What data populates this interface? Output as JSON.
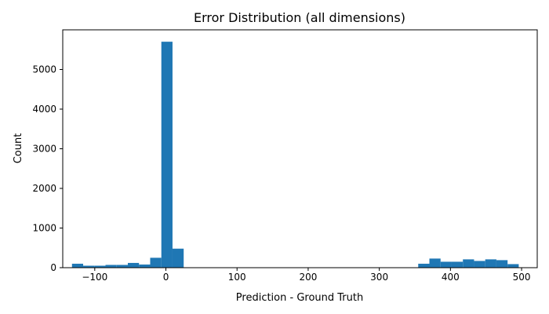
{
  "chart_data": {
    "type": "bar",
    "title": "Error Distribution (all dimensions)",
    "xlabel": "Prediction - Ground Truth",
    "ylabel": "Count",
    "xlim": [
      -145,
      522
    ],
    "ylim": [
      0,
      6000
    ],
    "xticks": [
      -100,
      0,
      100,
      200,
      300,
      400,
      500
    ],
    "yticks": [
      0,
      1000,
      2000,
      3000,
      4000,
      5000
    ],
    "grid": false,
    "bar_color": "#1f77b4",
    "bin_width": 15.7,
    "bins": [
      {
        "x0": -132.0,
        "value": 100
      },
      {
        "x0": -116.3,
        "value": 50
      },
      {
        "x0": -100.6,
        "value": 50
      },
      {
        "x0": -84.9,
        "value": 70
      },
      {
        "x0": -69.2,
        "value": 70
      },
      {
        "x0": -53.5,
        "value": 120
      },
      {
        "x0": -37.8,
        "value": 80
      },
      {
        "x0": -22.1,
        "value": 250
      },
      {
        "x0": -6.4,
        "value": 5700
      },
      {
        "x0": 9.3,
        "value": 480
      },
      {
        "x0": 25.0,
        "value": 0
      },
      {
        "x0": 40.7,
        "value": 0
      },
      {
        "x0": 56.4,
        "value": 0
      },
      {
        "x0": 72.1,
        "value": 0
      },
      {
        "x0": 87.8,
        "value": 0
      },
      {
        "x0": 103.5,
        "value": 0
      },
      {
        "x0": 119.2,
        "value": 0
      },
      {
        "x0": 134.9,
        "value": 0
      },
      {
        "x0": 150.6,
        "value": 0
      },
      {
        "x0": 166.3,
        "value": 0
      },
      {
        "x0": 182.0,
        "value": 0
      },
      {
        "x0": 197.7,
        "value": 0
      },
      {
        "x0": 213.4,
        "value": 0
      },
      {
        "x0": 229.1,
        "value": 0
      },
      {
        "x0": 244.8,
        "value": 0
      },
      {
        "x0": 260.5,
        "value": 0
      },
      {
        "x0": 276.2,
        "value": 0
      },
      {
        "x0": 291.9,
        "value": 0
      },
      {
        "x0": 307.6,
        "value": 0
      },
      {
        "x0": 323.3,
        "value": 0
      },
      {
        "x0": 339.0,
        "value": 0
      },
      {
        "x0": 354.7,
        "value": 100
      },
      {
        "x0": 370.4,
        "value": 230
      },
      {
        "x0": 386.1,
        "value": 150
      },
      {
        "x0": 401.8,
        "value": 150
      },
      {
        "x0": 417.5,
        "value": 210
      },
      {
        "x0": 433.2,
        "value": 170
      },
      {
        "x0": 448.9,
        "value": 210
      },
      {
        "x0": 464.6,
        "value": 190
      },
      {
        "x0": 480.3,
        "value": 90
      }
    ]
  }
}
